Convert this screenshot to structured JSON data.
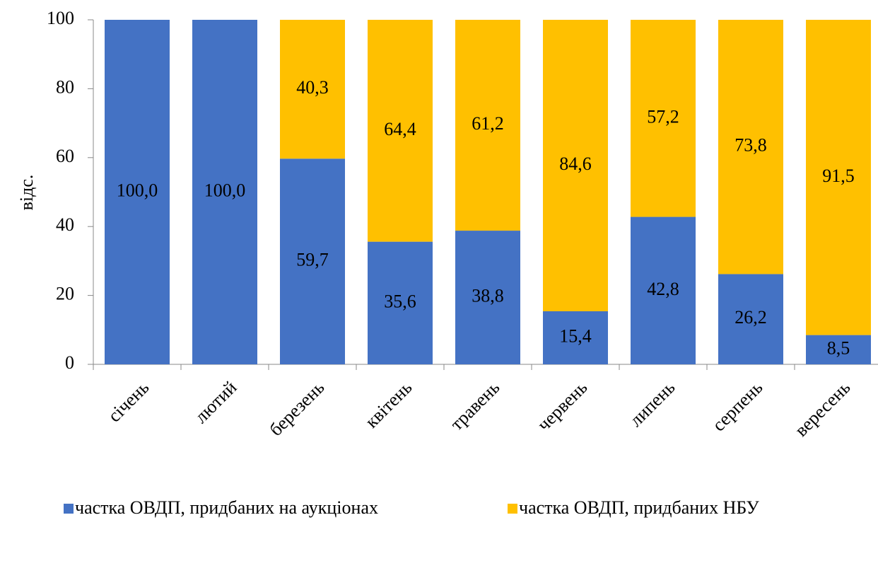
{
  "chart_data": {
    "type": "stacked_bar",
    "ylabel": "відс.",
    "categories": [
      "січень",
      "лютий",
      "березень",
      "квітень",
      "травень",
      "червень",
      "липень",
      "серпень",
      "вересень"
    ],
    "series": [
      {
        "name": "частка ОВДП, придбаних на аукціонах",
        "color": "#4472c4",
        "values": [
          100,
          100,
          59.7,
          35.6,
          38.8,
          15.4,
          42.8,
          26.2,
          8.5
        ],
        "value_labels": [
          "100,0",
          "100,0",
          "59,7",
          "35,6",
          "38,8",
          "15,4",
          "42,8",
          "26,2",
          "8,5"
        ]
      },
      {
        "name": "частка ОВДП, придбаних НБУ",
        "color": "#ffc000",
        "values": [
          null,
          null,
          40.3,
          64.4,
          61.2,
          84.6,
          57.2,
          73.8,
          91.5
        ],
        "value_labels": [
          null,
          null,
          "40,3",
          "64,4",
          "61,2",
          "84,6",
          "57,2",
          "73,8",
          "91,5"
        ]
      }
    ],
    "ylim": [
      0,
      100
    ],
    "yticks": [
      0,
      20,
      40,
      60,
      80,
      100
    ],
    "legend": "bottom"
  }
}
